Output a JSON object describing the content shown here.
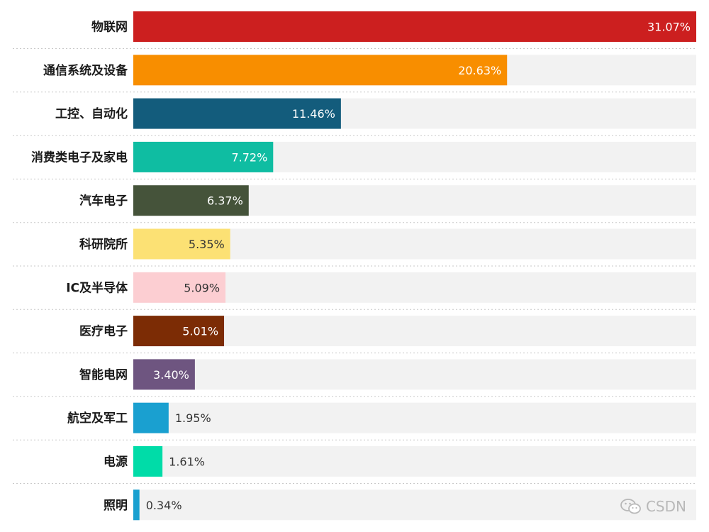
{
  "chart_data": {
    "type": "bar",
    "orientation": "horizontal",
    "categories": [
      "物联网",
      "通信系统及设备",
      "工控、自动化",
      "消费类电子及家电",
      "汽车电子",
      "科研院所",
      "IC及半导体",
      "医疗电子",
      "智能电网",
      "航空及军工",
      "电源",
      "照明"
    ],
    "values": [
      31.07,
      20.63,
      11.46,
      7.72,
      6.37,
      5.35,
      5.09,
      5.01,
      3.4,
      1.95,
      1.61,
      0.34
    ],
    "value_labels": [
      "31.07%",
      "20.63%",
      "11.46%",
      "7.72%",
      "6.37%",
      "5.35%",
      "5.09%",
      "5.01%",
      "3.40%",
      "1.95%",
      "1.61%",
      "0.34%"
    ],
    "colors": [
      "#cc1f1f",
      "#f88e00",
      "#135c7c",
      "#0fbda2",
      "#45533a",
      "#fce174",
      "#fcced2",
      "#7c2c05",
      "#6e5580",
      "#1aa0d0",
      "#00dca8",
      "#1aa0d0"
    ],
    "label_colors": [
      "#ffffff",
      "#ffffff",
      "#ffffff",
      "#ffffff",
      "#ffffff",
      "#333333",
      "#333333",
      "#ffffff",
      "#ffffff",
      "#333333",
      "#333333",
      "#333333"
    ],
    "track_color": "#f2f2f2",
    "xlim": [
      0,
      31.07
    ],
    "title": "",
    "xlabel": "",
    "ylabel": ""
  },
  "watermark": {
    "icon": "wechat-icon",
    "text": "CSDN"
  }
}
